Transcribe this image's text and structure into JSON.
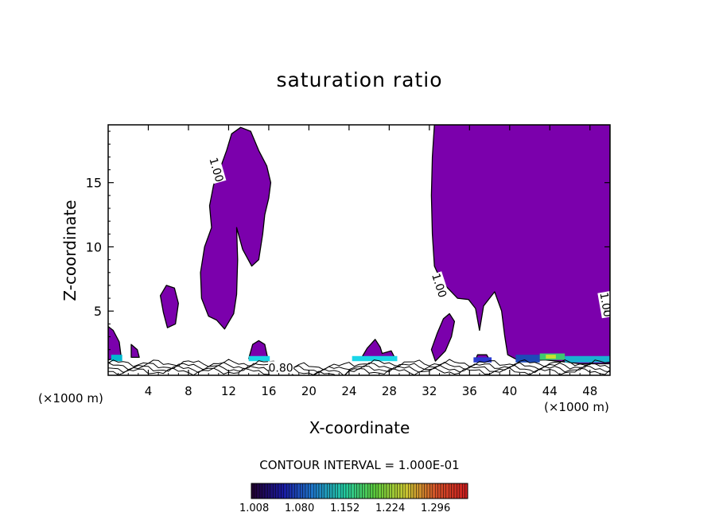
{
  "chart_data": {
    "type": "heatmap",
    "title": "saturation ratio",
    "xlabel": "X-coordinate",
    "ylabel": "Z-coordinate",
    "x_unit_left": "(×1000 m)",
    "x_unit_right": "(×1000 m)",
    "xlim": [
      0,
      50
    ],
    "ylim": [
      0,
      19.5
    ],
    "x_ticks": [
      4,
      8,
      12,
      16,
      20,
      24,
      28,
      32,
      36,
      40,
      44,
      48
    ],
    "y_ticks": [
      5,
      10,
      15
    ],
    "contour_interval_text": "CONTOUR INTERVAL = 1.000E-01",
    "contour_labels": [
      {
        "text": "1.00",
        "x": 10.8,
        "y": 16.0,
        "angle": 74
      },
      {
        "text": "1.00",
        "x": 33.0,
        "y": 7.0,
        "angle": 72
      },
      {
        "text": "1.00",
        "x": 49.6,
        "y": 5.5,
        "angle": 80
      },
      {
        "text": "0.80",
        "x": 17.2,
        "y": 0.6,
        "angle": 0
      }
    ],
    "filled_regions": [
      {
        "name": "plume_left",
        "points": [
          [
            12.3,
            18.8
          ],
          [
            13.2,
            19.3
          ],
          [
            14.2,
            19.0
          ],
          [
            15.0,
            17.5
          ],
          [
            15.8,
            16.3
          ],
          [
            16.2,
            15.0
          ],
          [
            16.0,
            13.8
          ],
          [
            15.6,
            12.5
          ],
          [
            15.4,
            11.0
          ],
          [
            15.0,
            9.0
          ],
          [
            14.3,
            8.5
          ],
          [
            13.4,
            9.8
          ],
          [
            12.8,
            11.5
          ],
          [
            12.9,
            9.0
          ],
          [
            12.8,
            6.3
          ],
          [
            12.5,
            4.8
          ],
          [
            11.6,
            3.6
          ],
          [
            10.8,
            4.3
          ],
          [
            10.0,
            4.6
          ],
          [
            9.3,
            6.0
          ],
          [
            9.2,
            8.0
          ],
          [
            9.6,
            10.0
          ],
          [
            10.3,
            11.5
          ],
          [
            10.1,
            13.2
          ],
          [
            10.5,
            14.8
          ],
          [
            11.2,
            16.2
          ],
          [
            11.8,
            17.5
          ]
        ]
      },
      {
        "name": "blob_6",
        "points": [
          [
            5.2,
            6.2
          ],
          [
            5.8,
            7.0
          ],
          [
            6.6,
            6.8
          ],
          [
            7.0,
            5.6
          ],
          [
            6.7,
            4.0
          ],
          [
            5.9,
            3.7
          ],
          [
            5.5,
            4.9
          ]
        ]
      },
      {
        "name": "plume_right",
        "points": [
          [
            32.5,
            19.5
          ],
          [
            50,
            19.5
          ],
          [
            50,
            0.9
          ],
          [
            47,
            0.9
          ],
          [
            46.0,
            1.0
          ],
          [
            43.5,
            1.2
          ],
          [
            41.0,
            1.1
          ],
          [
            39.8,
            1.6
          ],
          [
            39.5,
            3.1
          ],
          [
            39.2,
            5.0
          ],
          [
            38.5,
            6.5
          ],
          [
            37.4,
            5.4
          ],
          [
            37.0,
            3.5
          ],
          [
            36.6,
            5.2
          ],
          [
            35.9,
            5.9
          ],
          [
            34.8,
            6.0
          ],
          [
            33.2,
            7.3
          ],
          [
            32.5,
            8.5
          ],
          [
            32.3,
            11.0
          ],
          [
            32.2,
            14.0
          ],
          [
            32.3,
            17.0
          ]
        ]
      },
      {
        "name": "blob_34",
        "points": [
          [
            32.2,
            2.0
          ],
          [
            32.8,
            3.3
          ],
          [
            33.4,
            4.4
          ],
          [
            34.0,
            4.8
          ],
          [
            34.5,
            4.2
          ],
          [
            34.2,
            3.0
          ],
          [
            33.6,
            1.9
          ],
          [
            32.6,
            1.1
          ]
        ]
      },
      {
        "name": "bump_0",
        "points": [
          [
            0,
            1.2
          ],
          [
            0,
            3.8
          ],
          [
            0.5,
            3.5
          ],
          [
            1.1,
            2.6
          ],
          [
            1.3,
            1.4
          ]
        ]
      },
      {
        "name": "bump_2",
        "points": [
          [
            2.3,
            1.4
          ],
          [
            2.3,
            2.4
          ],
          [
            2.9,
            2.0
          ],
          [
            3.1,
            1.4
          ]
        ]
      },
      {
        "name": "bump_15",
        "points": [
          [
            14.0,
            1.3
          ],
          [
            14.4,
            2.4
          ],
          [
            15.0,
            2.7
          ],
          [
            15.6,
            2.4
          ],
          [
            15.9,
            1.3
          ]
        ]
      },
      {
        "name": "bump_26",
        "points": [
          [
            25.2,
            1.3
          ],
          [
            25.8,
            2.1
          ],
          [
            26.6,
            2.8
          ],
          [
            27.1,
            2.2
          ],
          [
            27.3,
            1.7
          ],
          [
            28.2,
            1.9
          ],
          [
            28.6,
            1.3
          ]
        ]
      },
      {
        "name": "bump_38",
        "points": [
          [
            36.6,
            1.2
          ],
          [
            36.8,
            1.6
          ],
          [
            37.7,
            1.6
          ],
          [
            38.0,
            1.2
          ]
        ]
      }
    ],
    "high_value_bands": [
      {
        "x": [
          0.3,
          1.4
        ],
        "y": [
          1.1,
          1.6
        ],
        "color": "#00b8d0"
      },
      {
        "x": [
          14.0,
          16.1
        ],
        "y": [
          1.1,
          1.5
        ],
        "color": "#1ad6e8"
      },
      {
        "x": [
          24.3,
          28.8
        ],
        "y": [
          1.1,
          1.5
        ],
        "color": "#1ad6e8"
      },
      {
        "x": [
          36.4,
          38.2
        ],
        "y": [
          1.0,
          1.4
        ],
        "color": "#2a3ad0"
      },
      {
        "x": [
          40.6,
          43.0
        ],
        "y": [
          1.0,
          1.6
        ],
        "color": "#1e4ab8"
      },
      {
        "x": [
          43.0,
          45.5
        ],
        "y": [
          1.2,
          1.7
        ],
        "color": "#3cc870"
      },
      {
        "x": [
          43.6,
          44.6
        ],
        "y": [
          1.3,
          1.6
        ],
        "color": "#c8e030"
      },
      {
        "x": [
          45.5,
          50.0
        ],
        "y": [
          1.0,
          1.5
        ],
        "color": "#1ab0d0"
      }
    ],
    "fill_color": "#7b00ac",
    "colorbar": {
      "labels": [
        "1.008",
        "1.080",
        "1.152",
        "1.224",
        "1.296"
      ],
      "colors": [
        "#200030",
        "#1a1aa0",
        "#1e78c8",
        "#22c8a0",
        "#5ac83c",
        "#c8c832",
        "#d25028",
        "#c81e1e"
      ]
    }
  }
}
